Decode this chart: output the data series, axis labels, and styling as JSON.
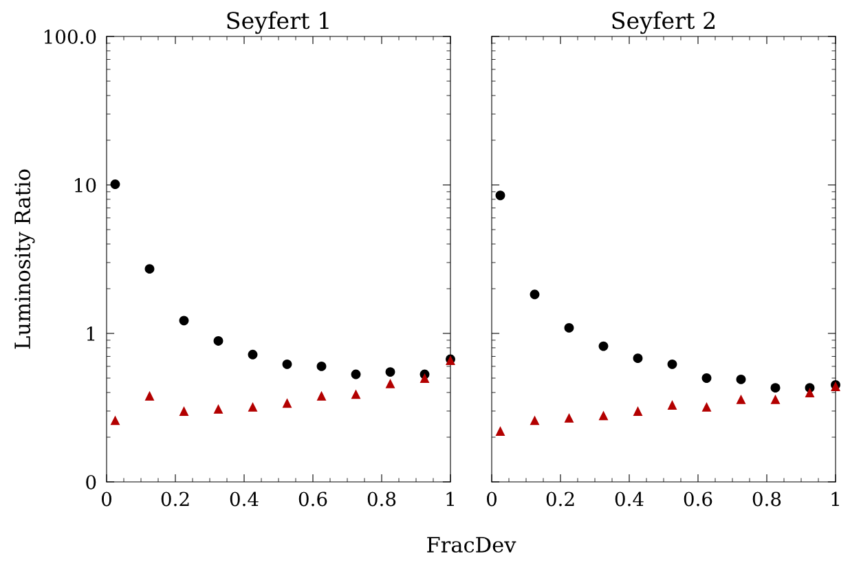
{
  "chart_data": [
    {
      "type": "scatter",
      "title": "Seyfert 1",
      "xlabel": "FracDev",
      "ylabel": "Luminosity Ratio",
      "log": "y",
      "xlim": [
        0,
        1
      ],
      "xticks": [
        0,
        0.2,
        0.4,
        0.6,
        0.8,
        1
      ],
      "ylim": [
        0.1,
        100
      ],
      "yticks": [
        {
          "value": 0.1,
          "label": "0"
        },
        1,
        10,
        {
          "value": 100,
          "label": "100.0"
        }
      ],
      "grid": false,
      "legend": false,
      "x": [
        0.025,
        0.125,
        0.225,
        0.325,
        0.425,
        0.525,
        0.625,
        0.725,
        0.825,
        0.925,
        1.0
      ],
      "series": [
        {
          "color": "#000000",
          "marker": "circle",
          "values": [
            10.1,
            2.72,
            1.22,
            0.89,
            0.72,
            0.62,
            0.6,
            0.53,
            0.55,
            0.53,
            0.67
          ]
        },
        {
          "color": "#b30000",
          "marker": "triangle",
          "values": [
            0.26,
            0.38,
            0.3,
            0.31,
            0.32,
            0.34,
            0.38,
            0.39,
            0.46,
            0.5,
            0.66
          ]
        }
      ]
    },
    {
      "type": "scatter",
      "title": "Seyfert 2",
      "log": "y",
      "xlim": [
        0,
        1
      ],
      "xticks": [
        0,
        0.2,
        0.4,
        0.6,
        0.8,
        1
      ],
      "ylim": [
        0.1,
        100
      ],
      "yticks": [
        {
          "value": 0.1,
          "label": null
        },
        {
          "value": 1,
          "label": null
        },
        {
          "value": 10,
          "label": null
        },
        {
          "value": 100,
          "label": null
        }
      ],
      "tick_labels": "x",
      "grid": false,
      "legend": false,
      "x": [
        0.025,
        0.125,
        0.225,
        0.325,
        0.425,
        0.525,
        0.625,
        0.725,
        0.825,
        0.925,
        1.0
      ],
      "series": [
        {
          "color": "#000000",
          "marker": "circle",
          "values": [
            8.5,
            1.83,
            1.09,
            0.82,
            0.68,
            0.62,
            0.5,
            0.49,
            0.43,
            0.43,
            0.45
          ]
        },
        {
          "color": "#b30000",
          "marker": "triangle",
          "values": [
            0.22,
            0.26,
            0.27,
            0.28,
            0.3,
            0.33,
            0.32,
            0.36,
            0.36,
            0.4,
            0.44
          ]
        }
      ]
    }
  ]
}
